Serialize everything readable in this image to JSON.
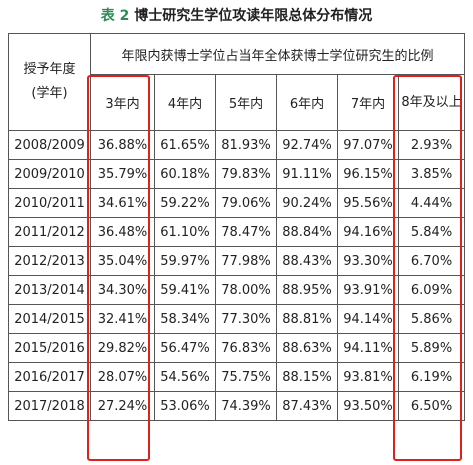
{
  "caption": {
    "number": "表 2",
    "title": "博士研究生学位攻读年限总体分布情况"
  },
  "table": {
    "year_header_line1": "授予年度",
    "year_header_line2": "(学年)",
    "group_header": "年限内获博士学位占当年全体获博士学位研究生的比例",
    "columns": [
      "3年内",
      "4年内",
      "5年内",
      "6年内",
      "7年内",
      "8年及以上"
    ],
    "rows": [
      {
        "year": "2008/2009",
        "values": [
          "36.88%",
          "61.65%",
          "81.93%",
          "92.74%",
          "97.07%",
          "2.93%"
        ]
      },
      {
        "year": "2009/2010",
        "values": [
          "35.79%",
          "60.18%",
          "79.83%",
          "91.11%",
          "96.15%",
          "3.85%"
        ]
      },
      {
        "year": "2010/2011",
        "values": [
          "34.61%",
          "59.22%",
          "79.06%",
          "90.24%",
          "95.56%",
          "4.44%"
        ]
      },
      {
        "year": "2011/2012",
        "values": [
          "36.48%",
          "61.10%",
          "78.47%",
          "88.84%",
          "94.16%",
          "5.84%"
        ]
      },
      {
        "year": "2012/2013",
        "values": [
          "35.04%",
          "59.97%",
          "77.98%",
          "88.43%",
          "93.30%",
          "6.70%"
        ]
      },
      {
        "year": "2013/2014",
        "values": [
          "34.30%",
          "59.41%",
          "78.00%",
          "88.95%",
          "93.91%",
          "6.09%"
        ]
      },
      {
        "year": "2014/2015",
        "values": [
          "32.41%",
          "58.34%",
          "77.30%",
          "88.81%",
          "94.14%",
          "5.86%"
        ]
      },
      {
        "year": "2015/2016",
        "values": [
          "29.82%",
          "56.47%",
          "76.83%",
          "88.63%",
          "94.11%",
          "5.89%"
        ]
      },
      {
        "year": "2016/2017",
        "values": [
          "28.07%",
          "54.56%",
          "75.75%",
          "88.15%",
          "93.81%",
          "6.19%"
        ]
      },
      {
        "year": "2017/2018",
        "values": [
          "27.24%",
          "53.06%",
          "74.39%",
          "87.43%",
          "93.50%",
          "6.50%"
        ]
      }
    ]
  },
  "highlight_color": "#e0211b"
}
